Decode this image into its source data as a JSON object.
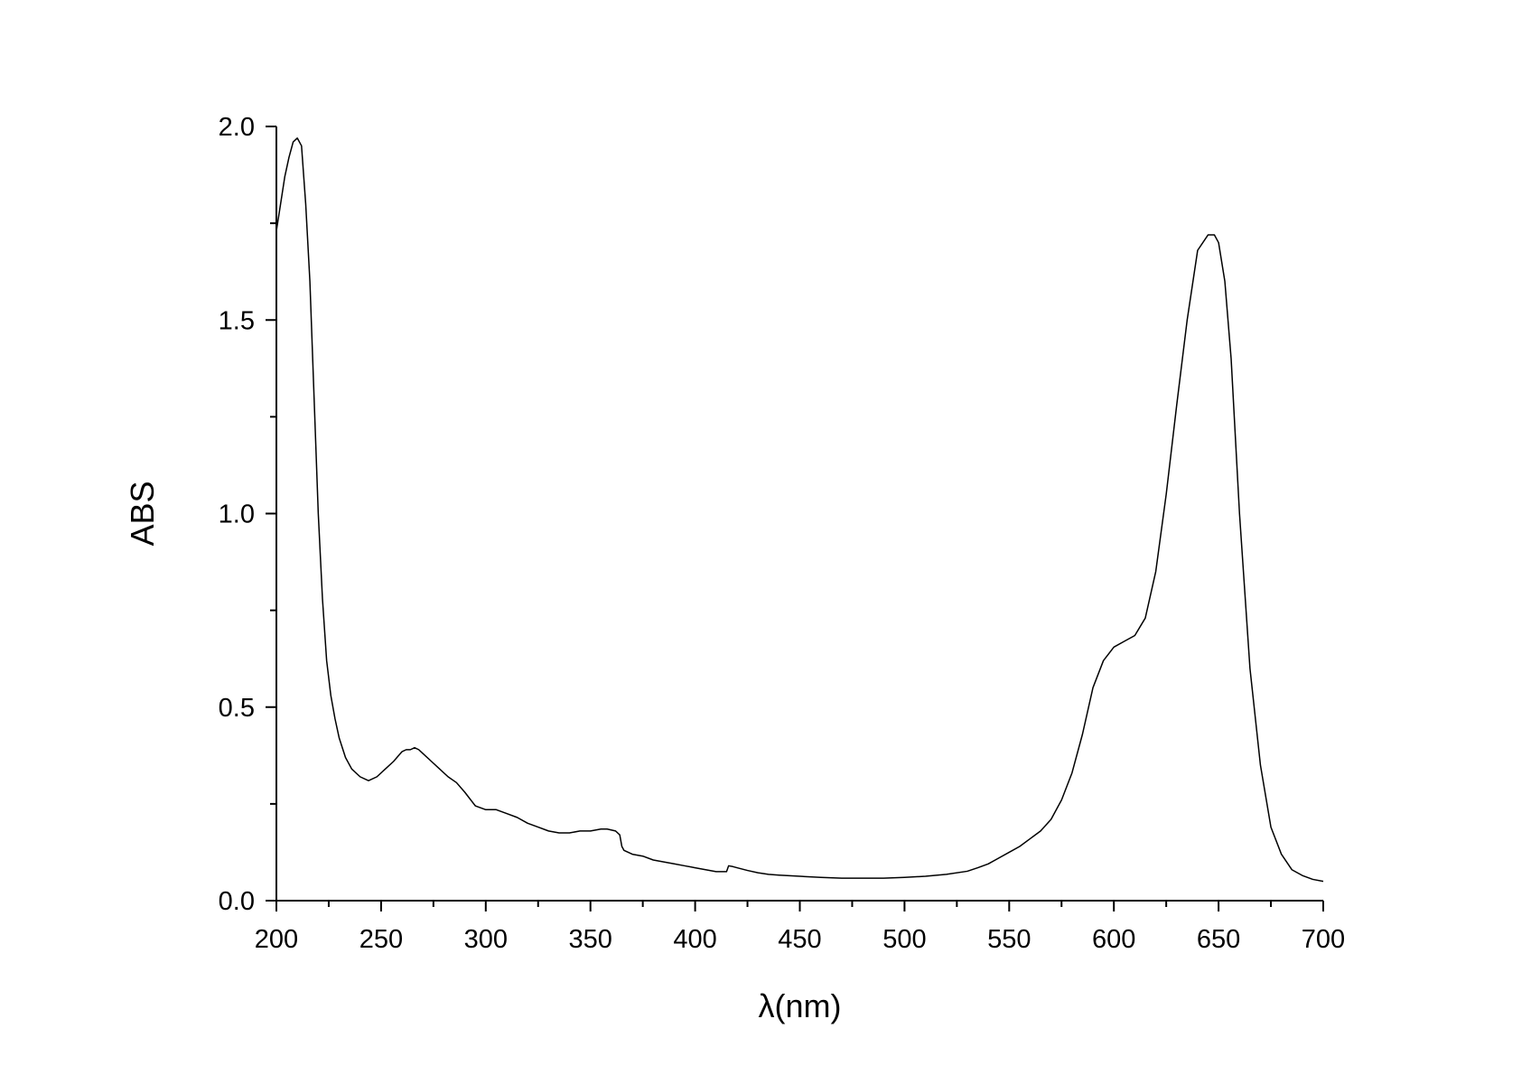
{
  "chart_data": {
    "type": "line",
    "title": "",
    "xlabel": "λ(nm)",
    "ylabel": "ABS",
    "xlim": [
      200,
      700
    ],
    "ylim": [
      0,
      2.0
    ],
    "x_ticks": [
      200,
      250,
      300,
      350,
      400,
      450,
      500,
      550,
      600,
      650,
      700
    ],
    "x_tick_labels": [
      "200",
      "250",
      "300",
      "350",
      "400",
      "450",
      "500",
      "550",
      "600",
      "650",
      "700"
    ],
    "y_ticks": [
      0.0,
      0.5,
      1.0,
      1.5,
      2.0
    ],
    "y_tick_labels": [
      "0.0",
      "0.5",
      "1.0",
      "1.5",
      "2.0"
    ],
    "grid": false,
    "line_color": "#000000",
    "series": [
      {
        "x": [
          200,
          202,
          204,
          206,
          208,
          210,
          212,
          214,
          216,
          218,
          220,
          222,
          224,
          226,
          228,
          230,
          233,
          236,
          240,
          244,
          248,
          252,
          256,
          260,
          262,
          264,
          266,
          268,
          270,
          274,
          278,
          282,
          286,
          290,
          295,
          300,
          305,
          310,
          315,
          320,
          325,
          330,
          335,
          340,
          345,
          350,
          355,
          358,
          362,
          364,
          365,
          366,
          370,
          375,
          380,
          385,
          390,
          395,
          400,
          405,
          410,
          415,
          416,
          418,
          420,
          425,
          430,
          435,
          440,
          450,
          460,
          470,
          480,
          490,
          500,
          510,
          520,
          530,
          535,
          540,
          545,
          550,
          555,
          560,
          565,
          570,
          575,
          580,
          585,
          590,
          595,
          600,
          605,
          610,
          615,
          620,
          625,
          630,
          635,
          640,
          645,
          648,
          650,
          653,
          656,
          660,
          665,
          670,
          675,
          680,
          685,
          690,
          695,
          700
        ],
        "y": [
          1.73,
          1.8,
          1.87,
          1.92,
          1.96,
          1.97,
          1.95,
          1.8,
          1.6,
          1.3,
          1.0,
          0.78,
          0.62,
          0.53,
          0.47,
          0.42,
          0.37,
          0.34,
          0.32,
          0.31,
          0.32,
          0.34,
          0.36,
          0.385,
          0.39,
          0.39,
          0.395,
          0.39,
          0.38,
          0.36,
          0.34,
          0.32,
          0.305,
          0.28,
          0.245,
          0.235,
          0.235,
          0.225,
          0.215,
          0.2,
          0.19,
          0.18,
          0.175,
          0.175,
          0.18,
          0.18,
          0.185,
          0.185,
          0.18,
          0.17,
          0.14,
          0.13,
          0.12,
          0.115,
          0.105,
          0.1,
          0.095,
          0.09,
          0.085,
          0.08,
          0.075,
          0.075,
          0.09,
          0.088,
          0.085,
          0.078,
          0.072,
          0.068,
          0.066,
          0.063,
          0.06,
          0.058,
          0.058,
          0.058,
          0.06,
          0.063,
          0.068,
          0.076,
          0.085,
          0.095,
          0.11,
          0.125,
          0.14,
          0.16,
          0.18,
          0.21,
          0.26,
          0.33,
          0.43,
          0.55,
          0.62,
          0.655,
          0.67,
          0.685,
          0.73,
          0.85,
          1.05,
          1.28,
          1.5,
          1.68,
          1.72,
          1.72,
          1.7,
          1.6,
          1.4,
          1.0,
          0.6,
          0.35,
          0.19,
          0.12,
          0.08,
          0.065,
          0.055,
          0.05
        ]
      }
    ]
  }
}
